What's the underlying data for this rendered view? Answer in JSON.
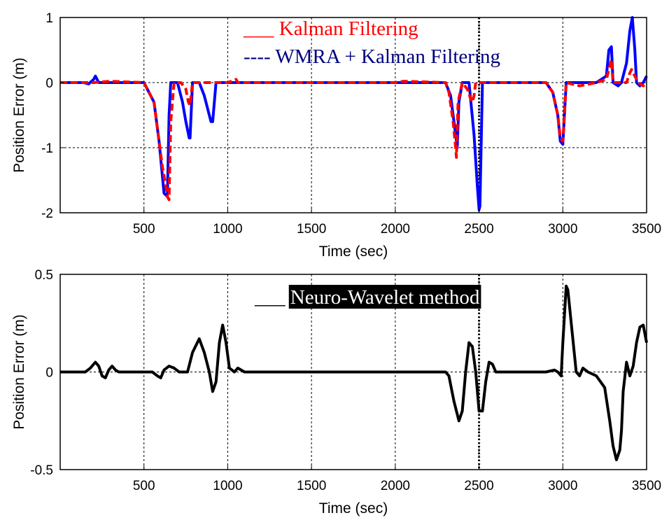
{
  "chart_data": [
    {
      "type": "line",
      "xlabel": "Time (sec)",
      "ylabel": "Position Error (m)",
      "xlim": [
        0,
        3500
      ],
      "ylim": [
        -2,
        1
      ],
      "xticks": [
        "500",
        "1000",
        "1500",
        "2000",
        "2500",
        "3000",
        "3500"
      ],
      "yticks": [
        "1",
        "0",
        "-1",
        "-2"
      ],
      "grid": true,
      "legend_placement": "top-center",
      "series": [
        {
          "name": "Kalman Filtering",
          "legend_label": "___ Kalman Filtering",
          "color": "#0000ff",
          "style": "solid",
          "x": [
            0,
            140,
            170,
            200,
            210,
            230,
            260,
            500,
            560,
            590,
            620,
            640,
            650,
            660,
            680,
            700,
            730,
            750,
            770,
            775,
            790,
            830,
            860,
            890,
            900,
            910,
            930,
            1500,
            2000,
            2300,
            2330,
            2350,
            2370,
            2380,
            2400,
            2440,
            2470,
            2490,
            2500,
            2505,
            2520,
            2900,
            2940,
            2970,
            2985,
            3000,
            3020,
            3200,
            3260,
            3275,
            3290,
            3300,
            3330,
            3350,
            3380,
            3400,
            3415,
            3430,
            3440,
            3460,
            3480,
            3490,
            3500
          ],
          "y": [
            0,
            0,
            -0.02,
            0.05,
            0.1,
            0,
            0,
            0,
            -0.3,
            -0.9,
            -1.7,
            -1.75,
            -0.5,
            0,
            0,
            0,
            -0.3,
            -0.6,
            -0.85,
            -0.85,
            0,
            0,
            -0.2,
            -0.5,
            -0.6,
            -0.6,
            0,
            0,
            0,
            0,
            -0.2,
            -0.6,
            -1.0,
            -0.3,
            0,
            0,
            -0.8,
            -1.6,
            -1.95,
            -1.9,
            0,
            0,
            -0.15,
            -0.5,
            -0.9,
            -0.95,
            0,
            0,
            0.1,
            0.5,
            0.55,
            0,
            -0.05,
            0,
            0.3,
            0.8,
            1.0,
            0.5,
            0,
            -0.05,
            0,
            0.05,
            0.1
          ]
        },
        {
          "name": "WMRA + Kalman Filtering",
          "legend_label": "---- WMRA + Kalman Filtering",
          "color": "#ff0000",
          "style": "dashed",
          "x": [
            0,
            200,
            300,
            500,
            560,
            590,
            610,
            625,
            640,
            650,
            660,
            680,
            720,
            750,
            765,
            775,
            790,
            900,
            1000,
            1050,
            1060,
            1100,
            1500,
            2000,
            2050,
            2300,
            2320,
            2345,
            2360,
            2365,
            2375,
            2400,
            2430,
            2450,
            2460,
            2470,
            2480,
            2500,
            2520,
            2900,
            2940,
            2970,
            2985,
            3000,
            3020,
            3100,
            3200,
            3260,
            3275,
            3290,
            3300,
            3380,
            3400,
            3410,
            3430,
            3450,
            3480,
            3500
          ],
          "y": [
            0,
            0,
            0.02,
            0,
            -0.3,
            -0.9,
            -1.3,
            -1.5,
            -1.75,
            -1.8,
            -0.6,
            0,
            0,
            -0.1,
            -0.3,
            -0.35,
            0,
            0,
            0,
            0.05,
            0,
            0,
            0,
            0,
            0.02,
            0,
            -0.15,
            -0.6,
            -1.0,
            -1.15,
            -0.3,
            0,
            -0.1,
            -0.25,
            -0.3,
            -0.2,
            0,
            0,
            0,
            0,
            -0.15,
            -0.5,
            -0.85,
            -0.9,
            0,
            -0.05,
            0,
            0.05,
            0.2,
            0.35,
            0,
            0,
            0.15,
            0.2,
            0.1,
            0,
            -0.05,
            0
          ]
        }
      ]
    },
    {
      "type": "line",
      "xlabel": "Time (sec)",
      "ylabel": "Position Error (m)",
      "xlim": [
        0,
        3500
      ],
      "ylim": [
        -0.5,
        0.5
      ],
      "xticks": [
        "500",
        "1000",
        "1500",
        "2000",
        "2500",
        "3000",
        "3500"
      ],
      "yticks": [
        "0.5",
        "0",
        "-0.5"
      ],
      "grid": true,
      "legend_placement": "top-center",
      "series": [
        {
          "name": "Neuro-Wavelet method",
          "legend_label": "___ Neuro-Wavelet method",
          "color": "#000000",
          "style": "solid",
          "x": [
            0,
            150,
            180,
            210,
            230,
            250,
            270,
            290,
            310,
            330,
            350,
            550,
            580,
            600,
            620,
            650,
            680,
            710,
            760,
            790,
            830,
            860,
            890,
            910,
            930,
            950,
            970,
            990,
            1010,
            1040,
            1060,
            1100,
            1500,
            2000,
            2300,
            2320,
            2350,
            2380,
            2400,
            2420,
            2440,
            2460,
            2480,
            2500,
            2520,
            2540,
            2560,
            2580,
            2600,
            2900,
            2950,
            2970,
            2990,
            3000,
            3020,
            3030,
            3050,
            3080,
            3100,
            3120,
            3150,
            3200,
            3250,
            3280,
            3300,
            3320,
            3340,
            3350,
            3360,
            3380,
            3400,
            3420,
            3440,
            3460,
            3480,
            3500
          ],
          "y": [
            0,
            0,
            0.02,
            0.05,
            0.03,
            -0.02,
            -0.03,
            0.01,
            0.03,
            0.01,
            0,
            0,
            -0.02,
            -0.03,
            0.01,
            0.03,
            0.02,
            0,
            0,
            0.1,
            0.17,
            0.1,
            0,
            -0.1,
            -0.05,
            0.15,
            0.24,
            0.15,
            0.02,
            0,
            0.02,
            0,
            0,
            0,
            0,
            -0.02,
            -0.15,
            -0.25,
            -0.2,
            0,
            0.15,
            0.13,
            0,
            -0.2,
            -0.2,
            -0.05,
            0.05,
            0.04,
            0,
            0,
            0.01,
            0,
            -0.02,
            0.15,
            0.44,
            0.42,
            0.25,
            0,
            -0.02,
            0.02,
            0,
            -0.02,
            -0.08,
            -0.25,
            -0.38,
            -0.45,
            -0.4,
            -0.3,
            -0.1,
            0.05,
            -0.02,
            0.03,
            0.15,
            0.23,
            0.24,
            0.15
          ]
        }
      ]
    }
  ]
}
